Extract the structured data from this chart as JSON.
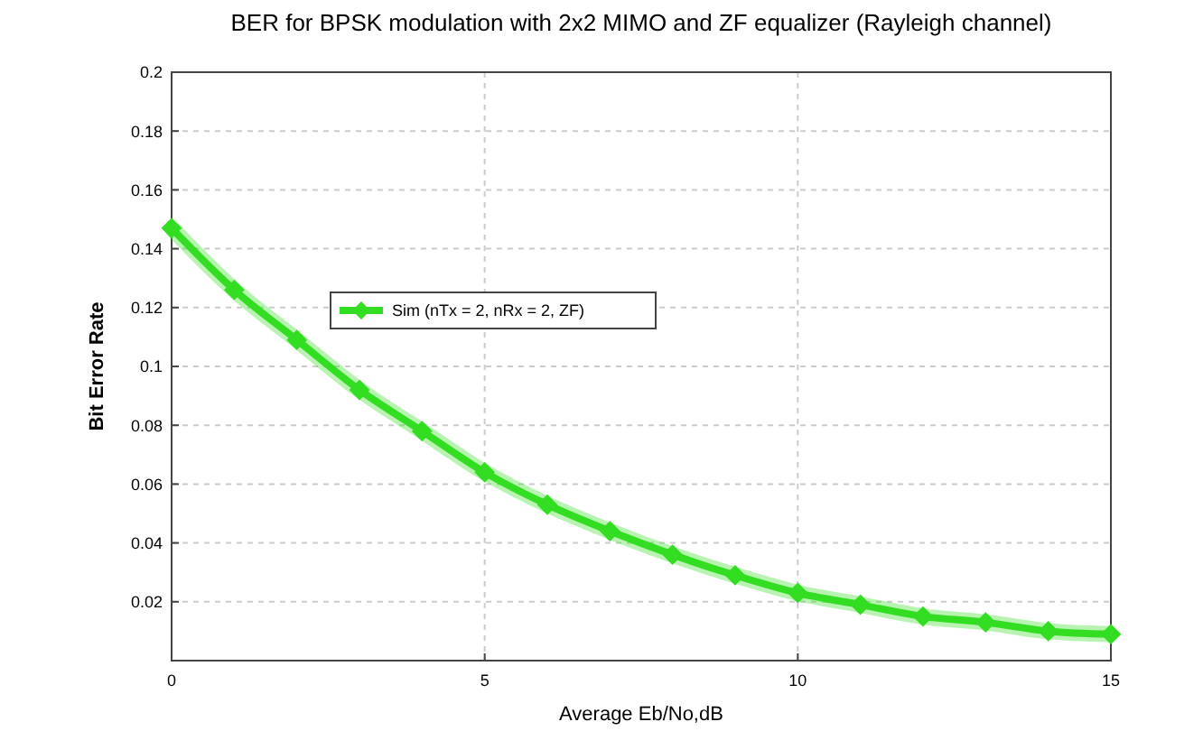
{
  "chart_data": {
    "type": "line",
    "title": "BER for BPSK modulation with 2x2 MIMO and ZF equalizer (Rayleigh channel)",
    "xlabel": "Average Eb/No,dB",
    "ylabel": "Bit Error Rate",
    "x": [
      0,
      1,
      2,
      3,
      4,
      5,
      6,
      7,
      8,
      9,
      10,
      11,
      12,
      13,
      14,
      15
    ],
    "series": [
      {
        "name": "Sim (nTx = 2, nRx = 2, ZF)",
        "color": "#33dd22",
        "values": [
          0.147,
          0.126,
          0.109,
          0.092,
          0.078,
          0.064,
          0.053,
          0.044,
          0.036,
          0.029,
          0.023,
          0.019,
          0.015,
          0.013,
          0.01,
          0.009
        ]
      }
    ],
    "xlim": [
      0,
      15
    ],
    "xticks": [
      0,
      5,
      10,
      15
    ],
    "ylim": [
      0,
      0.2
    ],
    "yticks": [
      {
        "value": 0,
        "label": null
      },
      0.02,
      0.04,
      0.06,
      0.08,
      0.1,
      0.12,
      0.14,
      0.16,
      0.18,
      0.2
    ],
    "grid": true,
    "legend": "top left",
    "marker": "diamond",
    "line_style": "solid"
  }
}
